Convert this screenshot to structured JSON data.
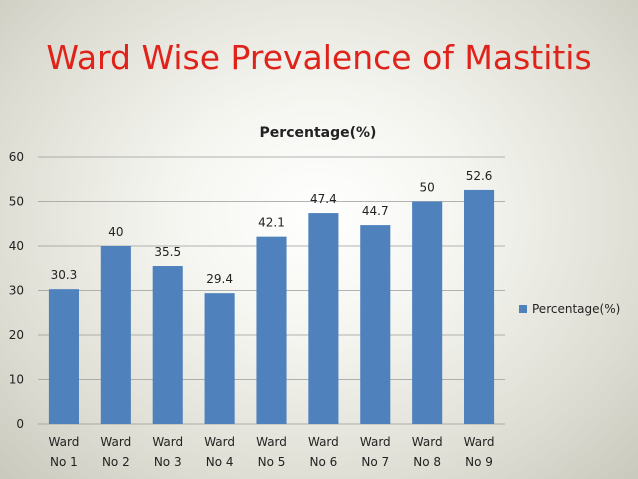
{
  "slide": {
    "title": "Ward Wise Prevalence of Mastitis"
  },
  "chart_data": {
    "type": "bar",
    "title": "Percentage(%)",
    "categories": [
      [
        "Ward",
        "No 1"
      ],
      [
        "Ward",
        "No 2"
      ],
      [
        "Ward",
        "No 3"
      ],
      [
        "Ward",
        "No 4"
      ],
      [
        "Ward",
        "No 5"
      ],
      [
        "Ward",
        "No 6"
      ],
      [
        "Ward",
        "No 7"
      ],
      [
        "Ward",
        "No 8"
      ],
      [
        "Ward",
        "No 9"
      ]
    ],
    "series": [
      {
        "name": "Percentage(%)",
        "values": [
          30.3,
          40,
          35.5,
          29.4,
          42.1,
          47.4,
          44.7,
          50,
          52.6
        ],
        "color": "#4f81bd"
      }
    ],
    "data_labels": [
      "30.3",
      "40",
      "35.5",
      "29.4",
      "42.1",
      "47.4",
      "44.7",
      "50",
      "52.6"
    ],
    "ylim": [
      0,
      60
    ],
    "yticks": [
      0,
      10,
      20,
      30,
      40,
      50,
      60
    ],
    "grid": true,
    "legend_position": "right",
    "xlabel": "",
    "ylabel": ""
  }
}
